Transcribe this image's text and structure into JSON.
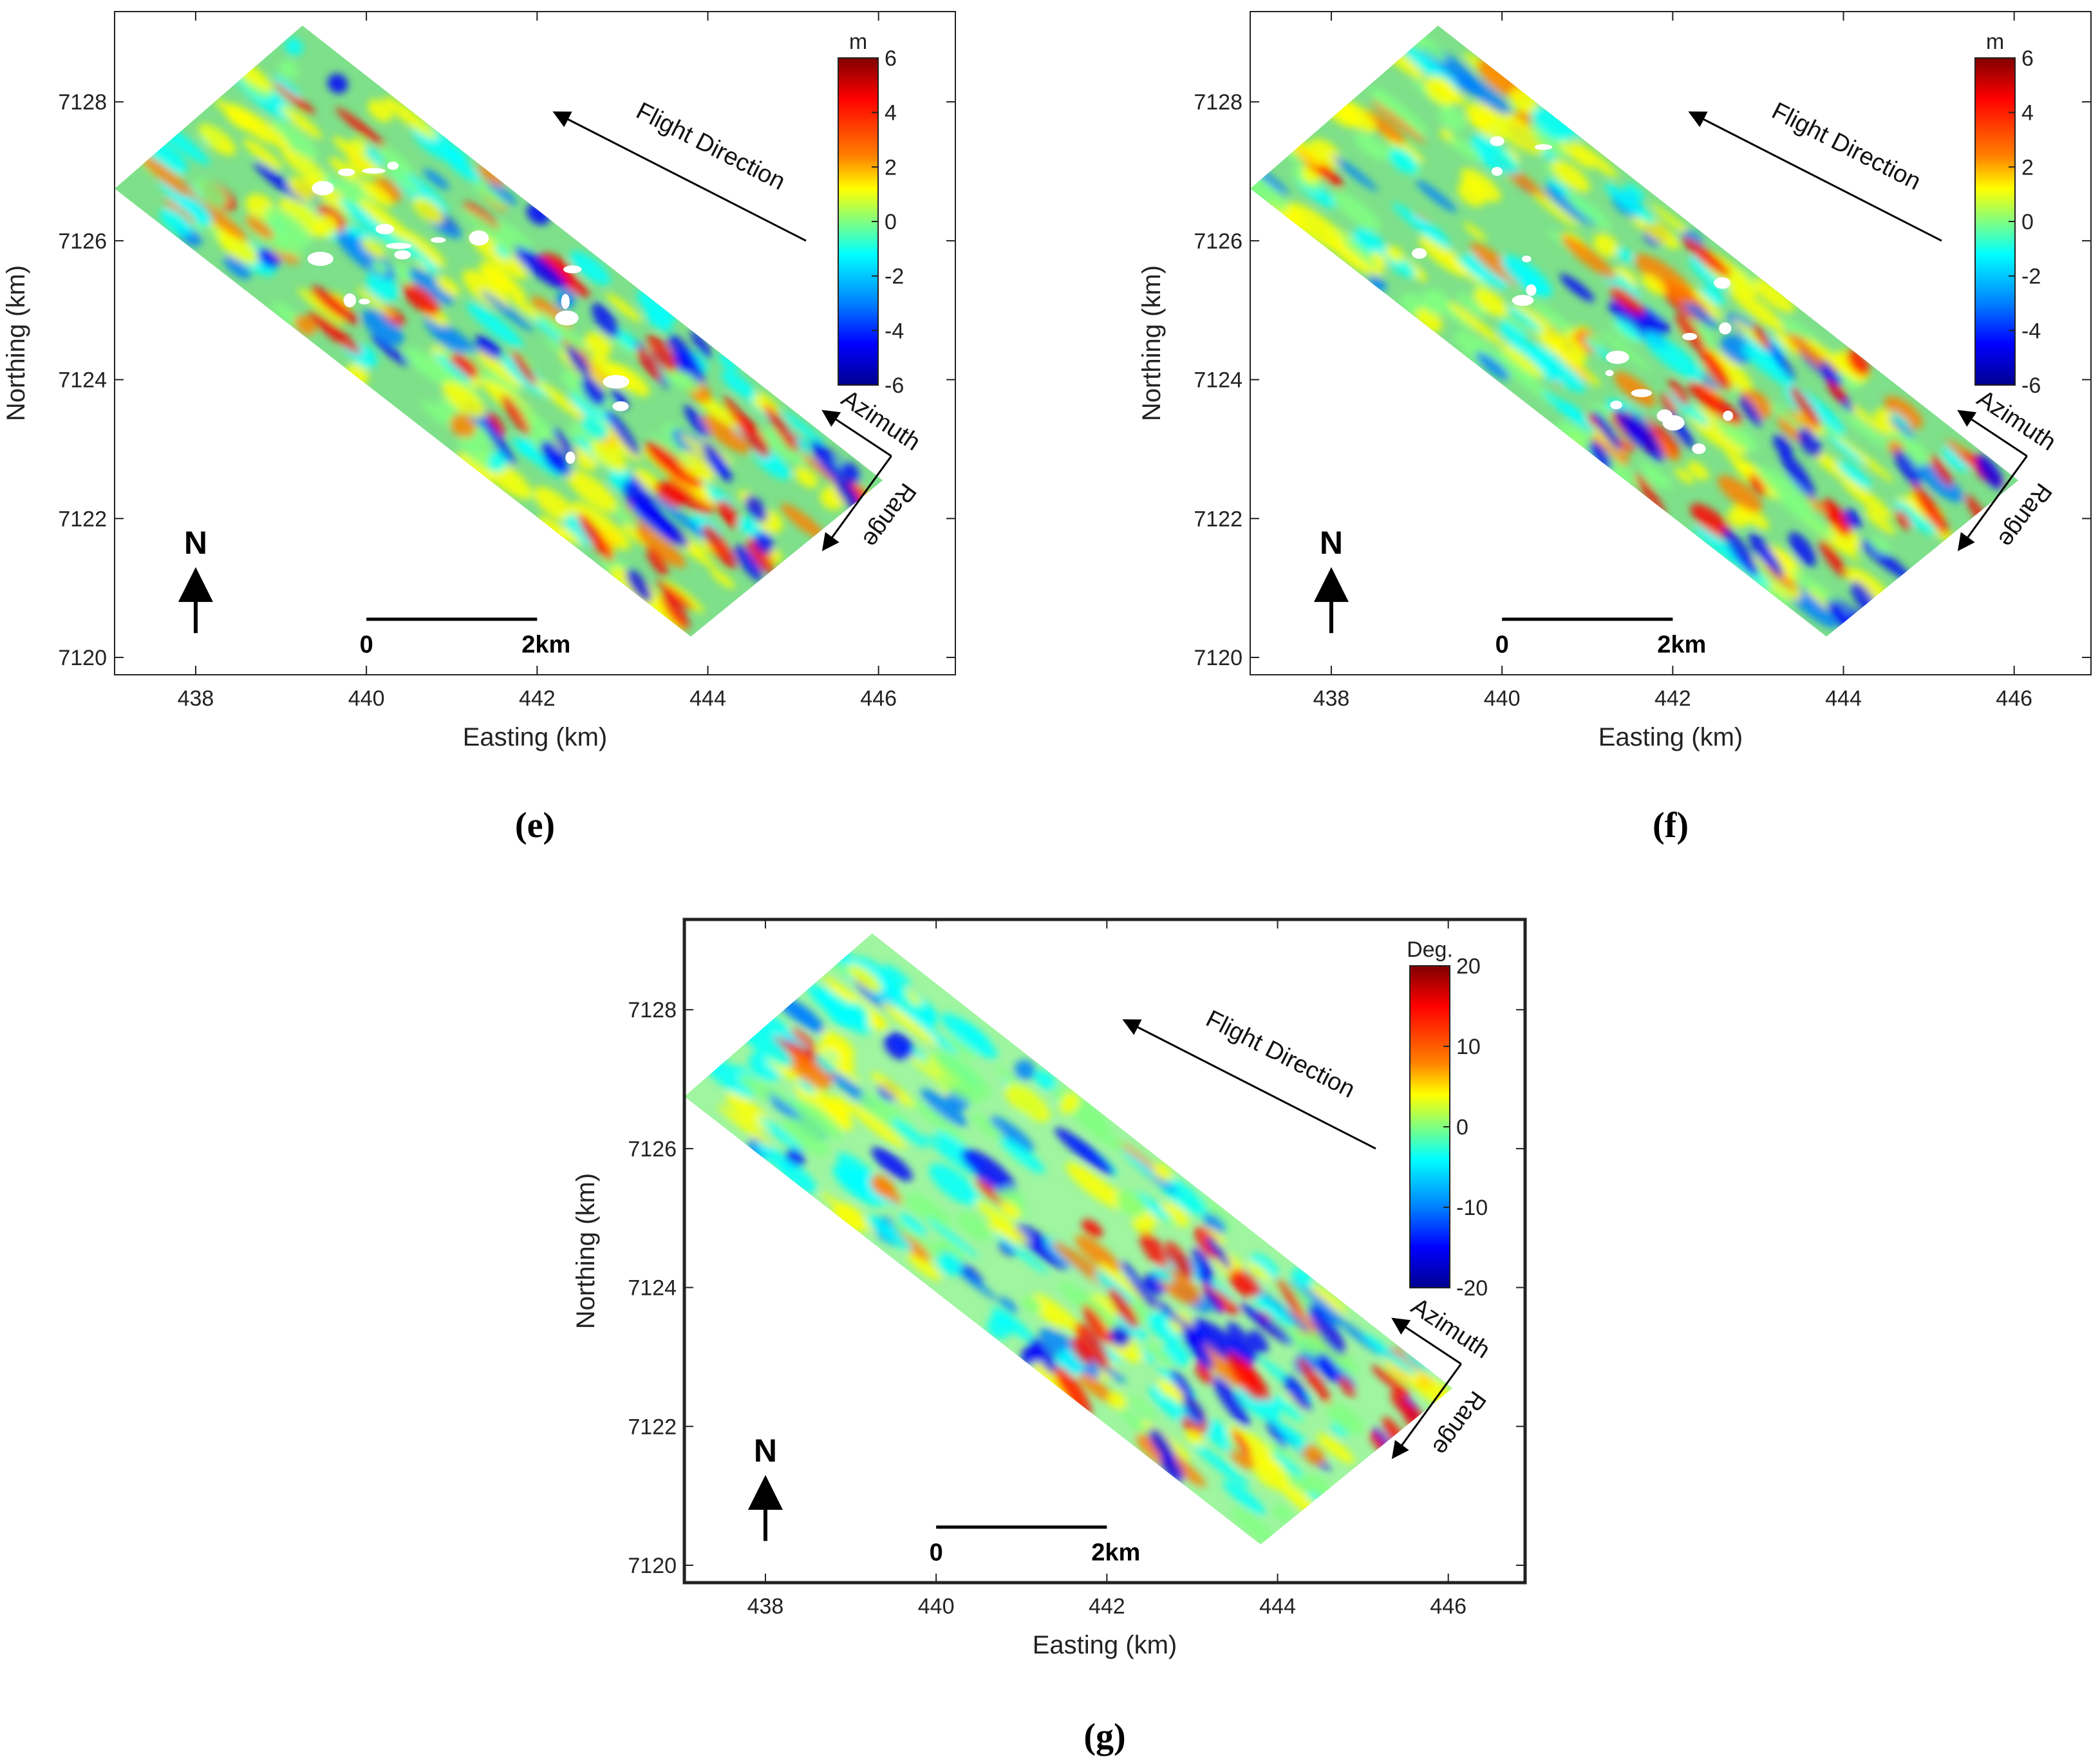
{
  "chart_data": [
    {
      "type": "heatmap",
      "panel_label": "(e)",
      "xlabel": "Easting (km)",
      "ylabel": "Northing (km)",
      "xlim": [
        437.05,
        446.9
      ],
      "ylim": [
        7119.75,
        7129.3
      ],
      "xticks": [
        438,
        440,
        442,
        444,
        446
      ],
      "yticks": [
        7120,
        7122,
        7124,
        7126,
        7128
      ],
      "colorbar": {
        "unit": "m",
        "min": -6,
        "max": 6,
        "ticks": [
          6,
          4,
          2,
          0,
          -2,
          -4,
          -6
        ]
      },
      "annotations": {
        "flight": "Flight Direction",
        "azimuth": "Azimuth",
        "range": "Range",
        "north": "N",
        "scale_start": "0",
        "scale_end": "2km"
      },
      "scale_bar_km": [
        440,
        442
      ]
    },
    {
      "type": "heatmap",
      "panel_label": "(f)",
      "xlabel": "Easting (km)",
      "ylabel": "Northing (km)",
      "xlim": [
        437.05,
        446.9
      ],
      "ylim": [
        7119.75,
        7129.3
      ],
      "xticks": [
        438,
        440,
        442,
        444,
        446
      ],
      "yticks": [
        7120,
        7122,
        7124,
        7126,
        7128
      ],
      "colorbar": {
        "unit": "m",
        "min": -6,
        "max": 6,
        "ticks": [
          6,
          4,
          2,
          0,
          -2,
          -4,
          -6
        ]
      },
      "annotations": {
        "flight": "Flight Direction",
        "azimuth": "Azimuth",
        "range": "Range",
        "north": "N",
        "scale_start": "0",
        "scale_end": "2km"
      },
      "scale_bar_km": [
        440,
        442
      ]
    },
    {
      "type": "heatmap",
      "panel_label": "(g)",
      "xlabel": "Easting (km)",
      "ylabel": "Northing (km)",
      "xlim": [
        437.05,
        446.9
      ],
      "ylim": [
        7119.75,
        7129.3
      ],
      "xticks": [
        438,
        440,
        442,
        444,
        446
      ],
      "yticks": [
        7120,
        7122,
        7124,
        7126,
        7128
      ],
      "colorbar": {
        "unit": "Deg.",
        "min": -20,
        "max": 20,
        "ticks": [
          20,
          10,
          0,
          -10,
          -20
        ]
      },
      "annotations": {
        "flight": "Flight Direction",
        "azimuth": "Azimuth",
        "range": "Range",
        "north": "N",
        "scale_start": "0",
        "scale_end": "2km"
      },
      "scale_bar_km": [
        440,
        442
      ]
    }
  ],
  "footprint_corners_km": [
    {
      "e": 437.05,
      "n": 7126.75
    },
    {
      "e": 439.25,
      "n": 7129.1
    },
    {
      "e": 446.05,
      "n": 7122.55
    },
    {
      "e": 443.8,
      "n": 7120.3
    }
  ],
  "colors": {
    "jet": [
      "#00008f",
      "#0000ff",
      "#0080ff",
      "#00ffff",
      "#80ff80",
      "#ffff00",
      "#ff8000",
      "#ff0000",
      "#800000"
    ],
    "background_field": "#7ee08a"
  }
}
